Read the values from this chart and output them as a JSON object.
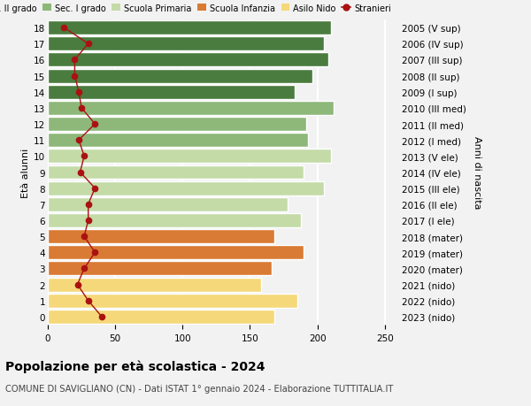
{
  "ages": [
    18,
    17,
    16,
    15,
    14,
    13,
    12,
    11,
    10,
    9,
    8,
    7,
    6,
    5,
    4,
    3,
    2,
    1,
    0
  ],
  "right_labels": [
    "2005 (V sup)",
    "2006 (IV sup)",
    "2007 (III sup)",
    "2008 (II sup)",
    "2009 (I sup)",
    "2010 (III med)",
    "2011 (II med)",
    "2012 (I med)",
    "2013 (V ele)",
    "2014 (IV ele)",
    "2015 (III ele)",
    "2016 (II ele)",
    "2017 (I ele)",
    "2018 (mater)",
    "2019 (mater)",
    "2020 (mater)",
    "2021 (nido)",
    "2022 (nido)",
    "2023 (nido)"
  ],
  "bar_values": [
    210,
    205,
    208,
    196,
    183,
    212,
    192,
    193,
    210,
    190,
    205,
    178,
    188,
    168,
    190,
    166,
    158,
    185,
    168
  ],
  "stranieri_values": [
    12,
    30,
    20,
    20,
    23,
    25,
    35,
    23,
    27,
    24,
    35,
    30,
    30,
    27,
    35,
    27,
    22,
    30,
    40
  ],
  "bar_colors": [
    "#4a7c3f",
    "#4a7c3f",
    "#4a7c3f",
    "#4a7c3f",
    "#4a7c3f",
    "#8db87a",
    "#8db87a",
    "#8db87a",
    "#c4dba8",
    "#c4dba8",
    "#c4dba8",
    "#c4dba8",
    "#c4dba8",
    "#d97b34",
    "#d97b34",
    "#d97b34",
    "#f5d87a",
    "#f5d87a",
    "#f5d87a"
  ],
  "legend_labels": [
    "Sec. II grado",
    "Sec. I grado",
    "Scuola Primaria",
    "Scuola Infanzia",
    "Asilo Nido",
    "Stranieri"
  ],
  "legend_colors": [
    "#4a7c3f",
    "#8db87a",
    "#c4dba8",
    "#d97b34",
    "#f5d87a",
    "#aa1111"
  ],
  "stranieri_line_color": "#aa1111",
  "title": "Popolazione per età scolastica - 2024",
  "subtitle": "COMUNE DI SAVIGLIANO (CN) - Dati ISTAT 1° gennaio 2024 - Elaborazione TUTTITALIA.IT",
  "ylabel_left": "Età alunni",
  "ylabel_right": "Anni di nascita",
  "xlim": [
    0,
    260
  ],
  "bg_color": "#f2f2f2",
  "grid_color": "#ffffff"
}
